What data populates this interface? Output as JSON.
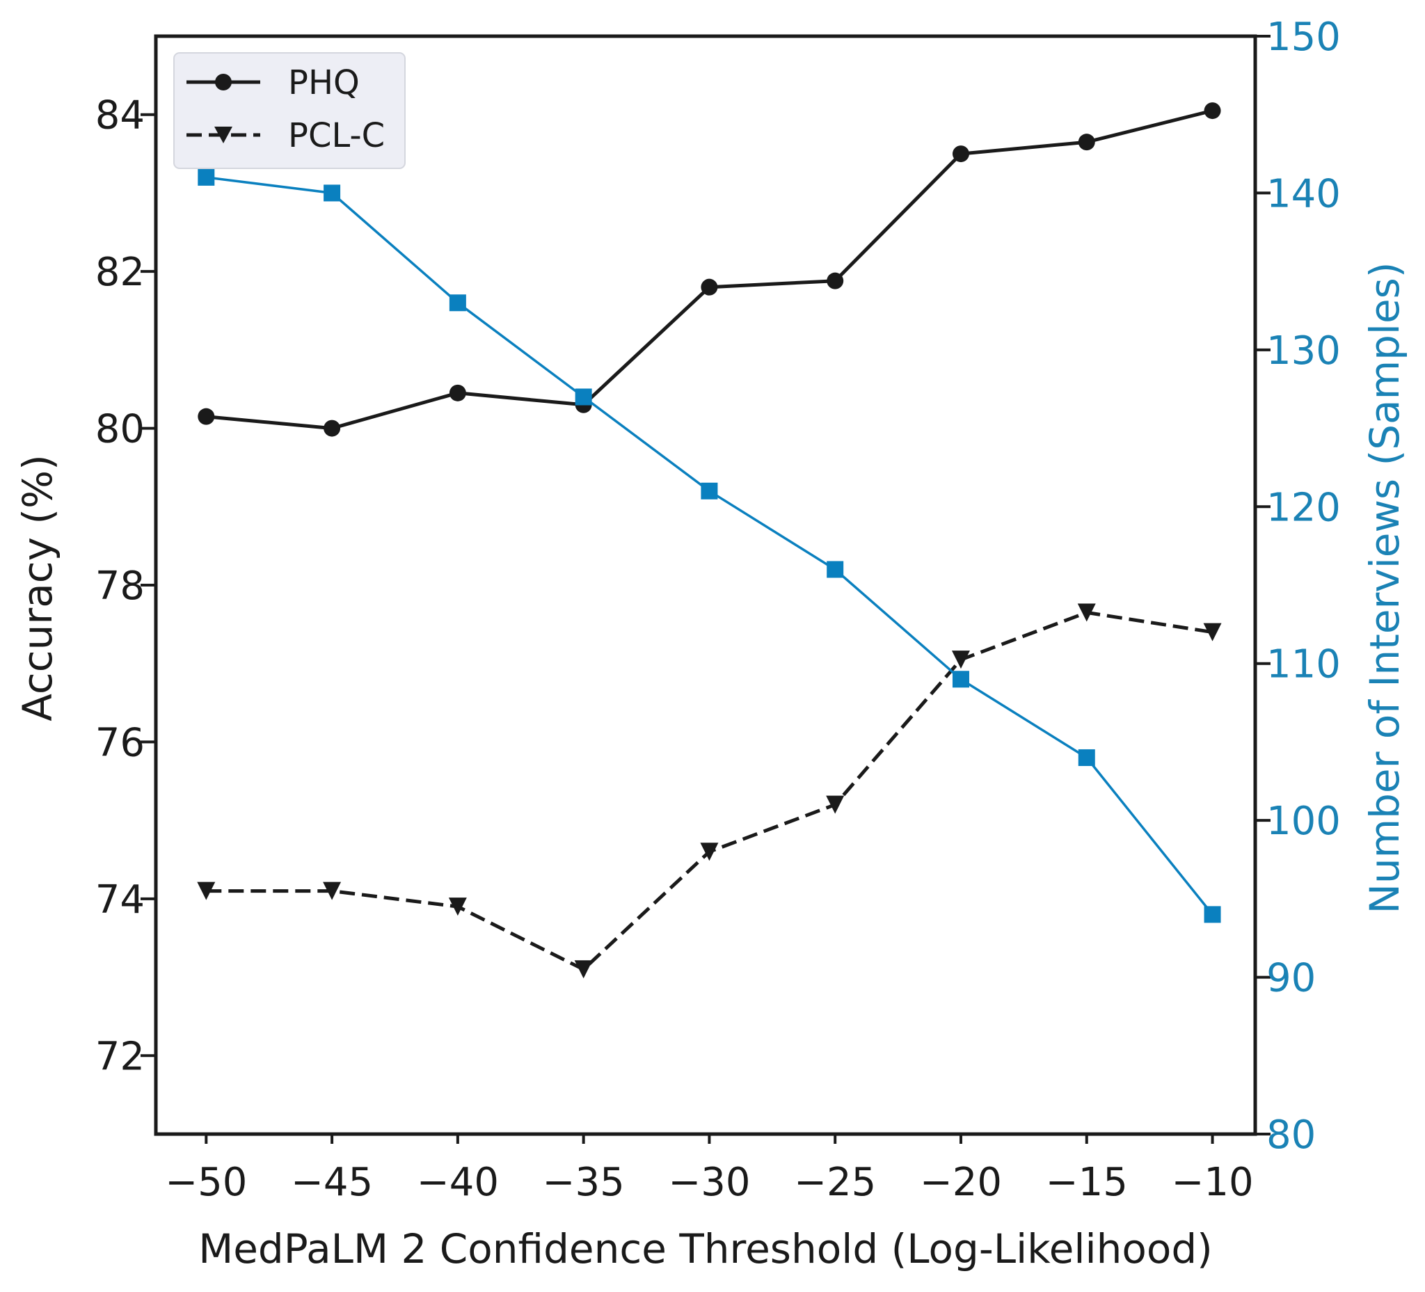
{
  "chart_data": {
    "type": "line",
    "title": "",
    "xlabel": "MedPaLM 2 Confidence Threshold (Log-Likelihood)",
    "ylabel": "Accuracy (%)",
    "y2label": "Number of Interviews (Samples)",
    "x": [
      -50,
      -45,
      -40,
      -35,
      -30,
      -25,
      -20,
      -15,
      -10
    ],
    "x_tick_labels": [
      "−50",
      "−45",
      "−40",
      "−35",
      "−30",
      "−25",
      "−20",
      "−15",
      "−10"
    ],
    "xlim": [
      -52,
      -8.3
    ],
    "ylim": [
      71.0,
      85.0
    ],
    "y2lim": [
      80,
      150
    ],
    "y_ticks": [
      72,
      74,
      76,
      78,
      80,
      82,
      84
    ],
    "y2_ticks": [
      80,
      90,
      100,
      110,
      120,
      130,
      140,
      150
    ],
    "series": [
      {
        "name": "PHQ",
        "axis": "left",
        "style": "solid",
        "marker": "circle",
        "color": "#1a1a1a",
        "values": [
          80.15,
          80.0,
          80.45,
          80.3,
          81.8,
          81.88,
          83.5,
          83.65,
          84.05
        ]
      },
      {
        "name": "PCL-C",
        "axis": "left",
        "style": "dashed",
        "marker": "triangle-down",
        "color": "#1a1a1a",
        "values": [
          74.1,
          74.1,
          73.9,
          73.1,
          74.6,
          75.2,
          77.05,
          77.65,
          77.4
        ]
      },
      {
        "name": "Number of Interviews",
        "axis": "right",
        "style": "solid",
        "marker": "square",
        "color": "#0a80bf",
        "values": [
          141,
          140,
          133,
          127,
          121,
          116,
          109,
          104,
          94
        ]
      }
    ],
    "legend": {
      "position": "top-left",
      "entries": [
        "PHQ",
        "PCL-C"
      ]
    },
    "colors": {
      "axis": "#1a1a1a",
      "right_axis": "#1a82b5",
      "samples_line": "#0a80bf"
    }
  }
}
